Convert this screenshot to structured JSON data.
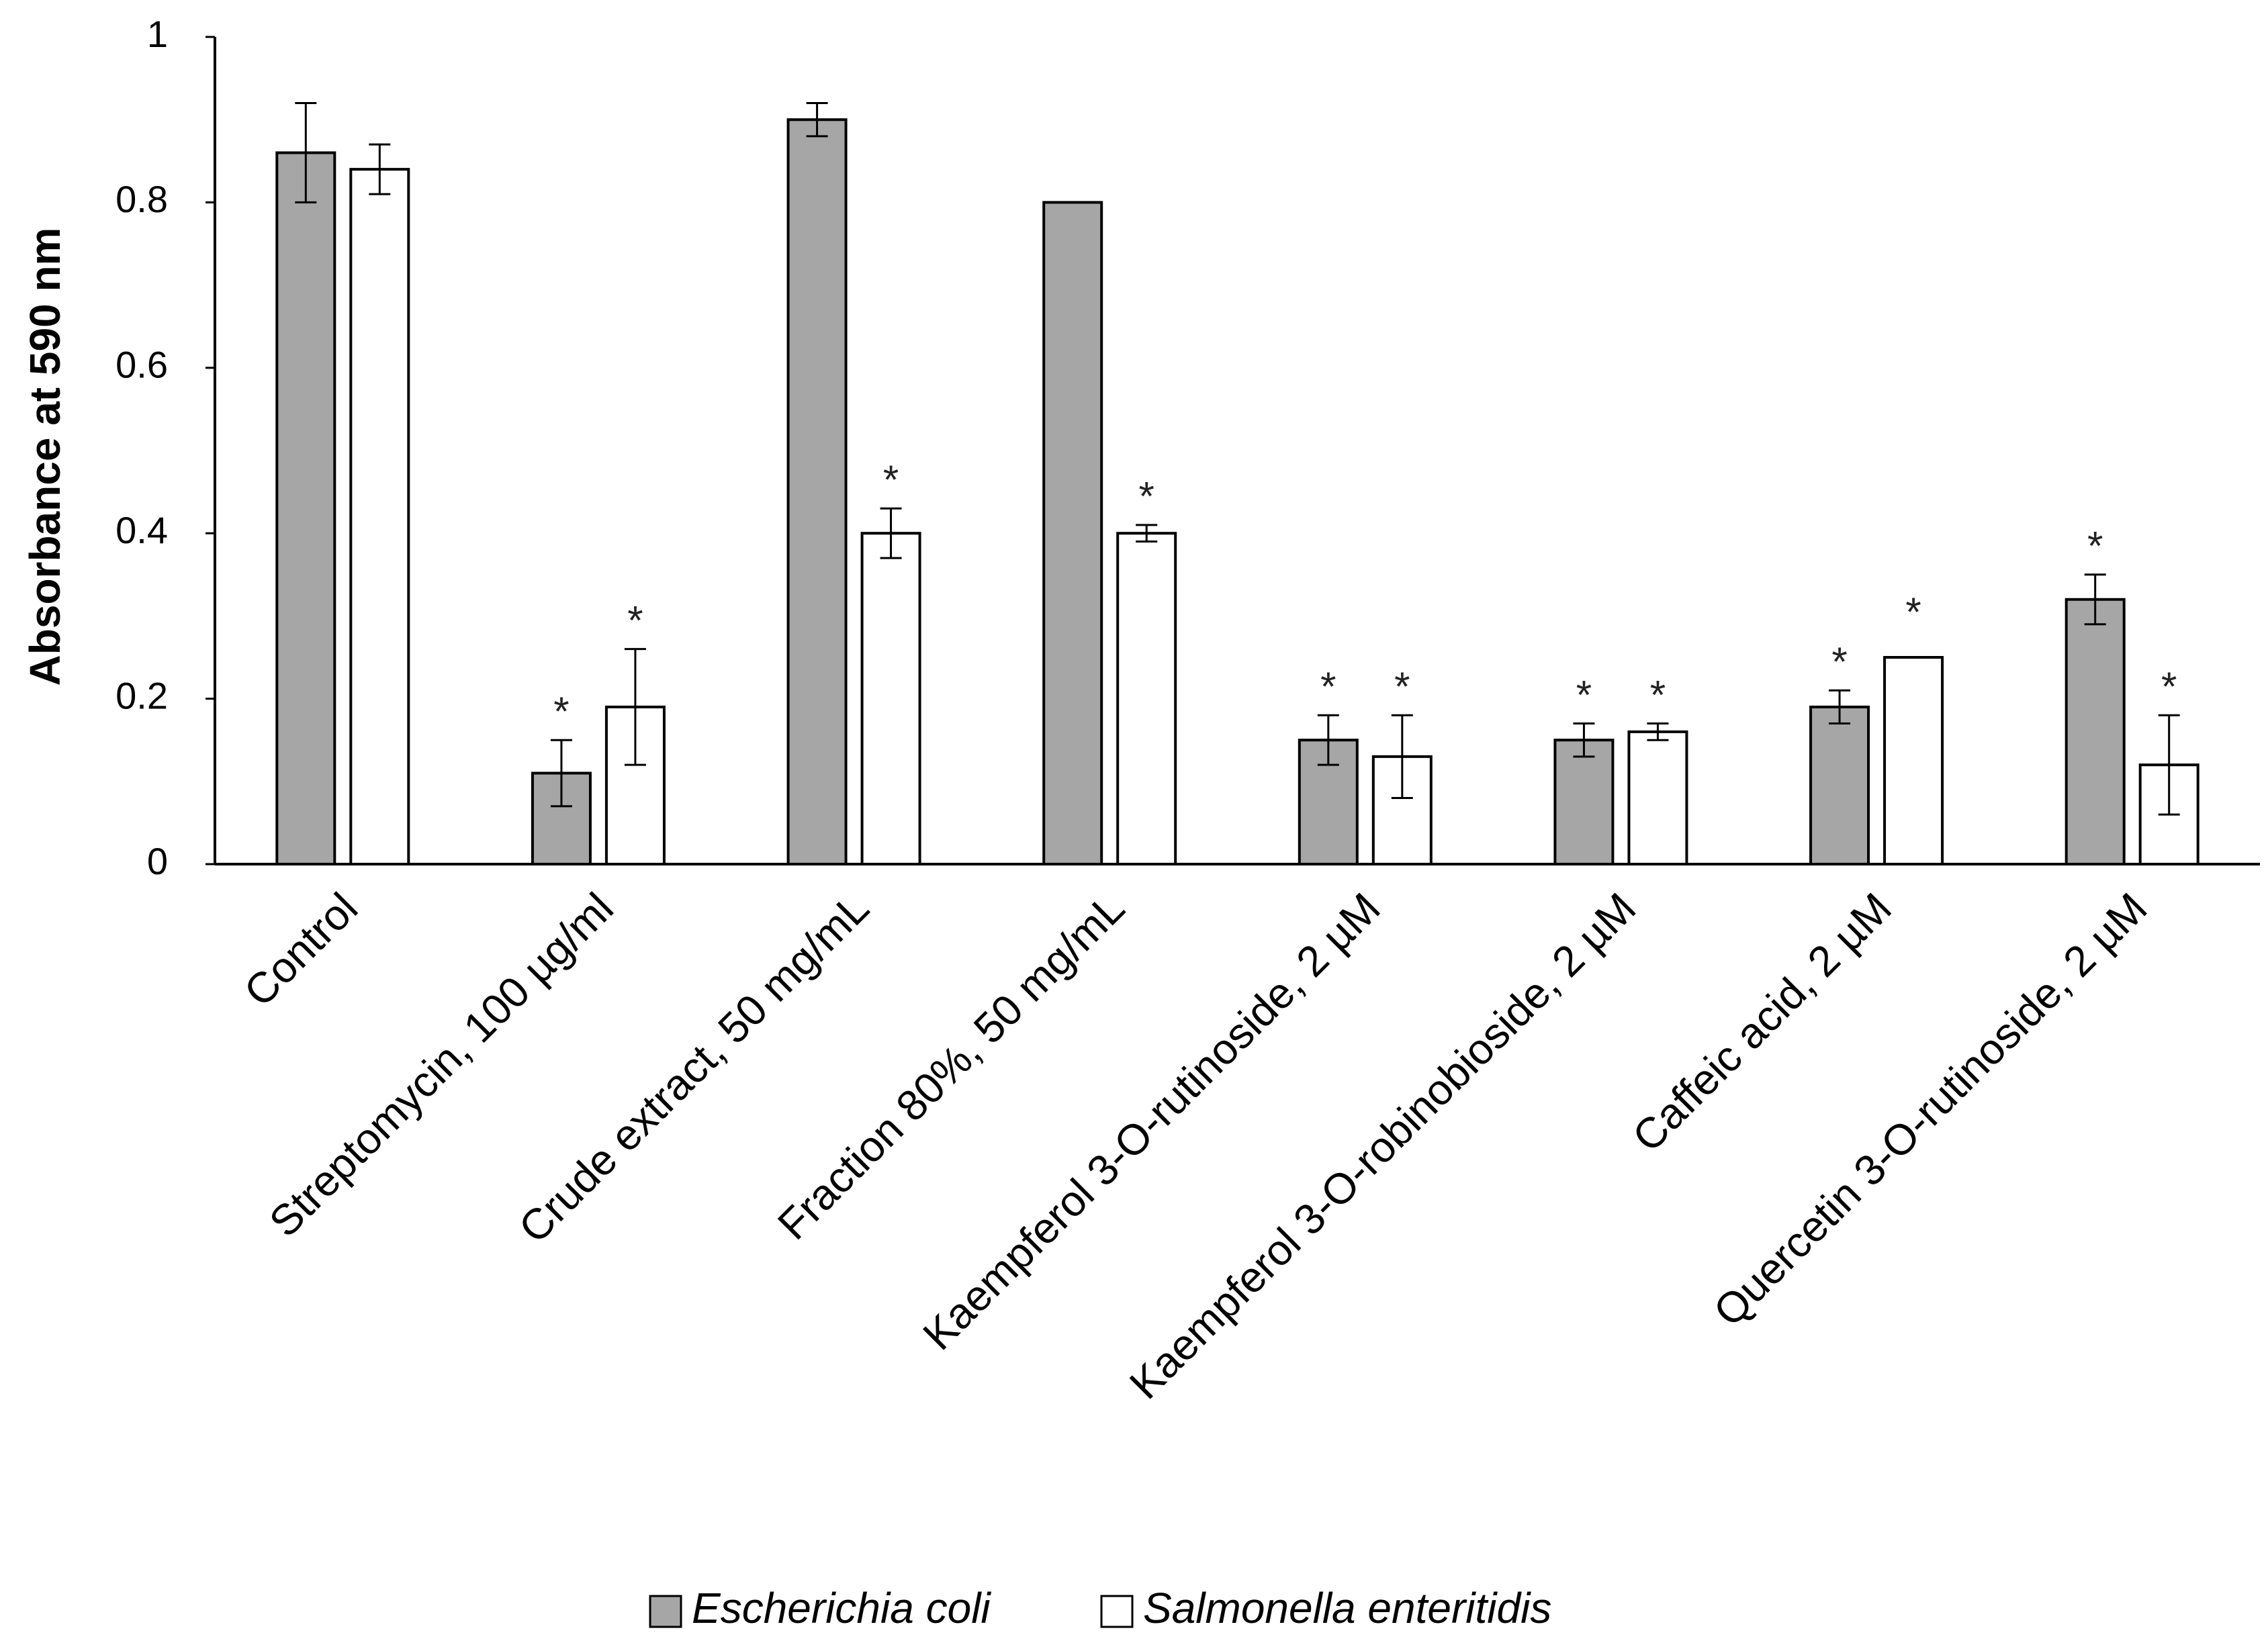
{
  "chart_data": {
    "type": "bar",
    "title": "",
    "xlabel": "",
    "ylabel": "Absorbance  at 590 nm",
    "ylim": [
      0,
      1
    ],
    "yticks": [
      0,
      0.2,
      0.4,
      0.6,
      0.8,
      1
    ],
    "ytick_labels": [
      "0",
      "0.2",
      "0.4",
      "0.6",
      "0.8",
      "1"
    ],
    "categories": [
      "Control",
      "Streptomycin, 100 µg/ml",
      "Crude extract, 50 mg/mL",
      "Fraction 80%, 50 mg/mL",
      "Kaempferol 3-O-rutinoside, 2 µM",
      "Kaempferol 3-O-robinobioside, 2 µM",
      "Caffeic acid, 2 µM",
      "Quercetin 3-O-rutinoside, 2 µM"
    ],
    "series": [
      {
        "name": "Escherichia coli",
        "color": "#a6a6a6",
        "values": [
          0.86,
          0.11,
          0.9,
          0.8,
          0.15,
          0.15,
          0.19,
          0.32
        ],
        "errors": [
          0.06,
          0.04,
          0.02,
          0.0,
          0.03,
          0.02,
          0.02,
          0.03
        ],
        "significant": [
          false,
          true,
          false,
          false,
          true,
          true,
          true,
          true
        ]
      },
      {
        "name": "Salmonella enteritidis",
        "color": "#ffffff",
        "values": [
          0.84,
          0.19,
          0.4,
          0.4,
          0.13,
          0.16,
          0.25,
          0.12
        ],
        "errors": [
          0.03,
          0.07,
          0.03,
          0.01,
          0.05,
          0.01,
          0.0,
          0.06
        ],
        "significant": [
          false,
          true,
          true,
          true,
          true,
          true,
          true,
          true
        ]
      }
    ],
    "significance_marker": "*",
    "legend_position": "bottom",
    "grid": false
  }
}
